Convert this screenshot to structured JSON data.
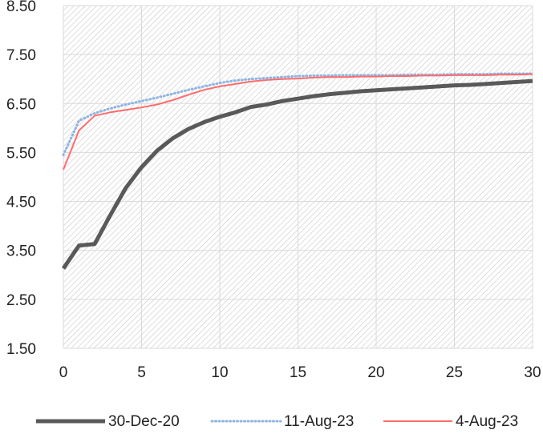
{
  "chart_data": {
    "type": "line",
    "title": "",
    "xlabel": "",
    "ylabel": "",
    "xlim": [
      0,
      30
    ],
    "ylim": [
      1.5,
      8.5
    ],
    "x_ticks": [
      0,
      5,
      10,
      15,
      20,
      25,
      30
    ],
    "x_tick_labels": [
      "0",
      "5",
      "10",
      "15",
      "20",
      "25",
      "30"
    ],
    "y_ticks": [
      1.5,
      2.5,
      3.5,
      4.5,
      5.5,
      6.5,
      7.5,
      8.5
    ],
    "y_tick_labels": [
      "1.50",
      "2.50",
      "3.50",
      "4.50",
      "5.50",
      "6.50",
      "7.50",
      "8.50"
    ],
    "grid": true,
    "background": "hatched",
    "legend_position": "bottom",
    "x": [
      0,
      1,
      2,
      3,
      4,
      5,
      6,
      7,
      8,
      9,
      10,
      11,
      12,
      13,
      14,
      15,
      16,
      17,
      18,
      19,
      20,
      21,
      22,
      23,
      24,
      25,
      26,
      27,
      28,
      29,
      30
    ],
    "series": [
      {
        "name": "30-Dec-20",
        "color": "#595959",
        "style": "solid-thick",
        "values": [
          3.13,
          3.6,
          3.63,
          4.22,
          4.78,
          5.2,
          5.54,
          5.79,
          5.98,
          6.12,
          6.23,
          6.32,
          6.43,
          6.48,
          6.55,
          6.6,
          6.65,
          6.69,
          6.72,
          6.75,
          6.77,
          6.79,
          6.81,
          6.83,
          6.85,
          6.87,
          6.88,
          6.9,
          6.92,
          6.94,
          6.96
        ]
      },
      {
        "name": "11-Aug-23",
        "color": "#8db4e2",
        "style": "dotted",
        "values": [
          5.45,
          6.15,
          6.3,
          6.4,
          6.48,
          6.55,
          6.62,
          6.7,
          6.78,
          6.85,
          6.92,
          6.97,
          7.0,
          7.02,
          7.04,
          7.06,
          7.07,
          7.07,
          7.08,
          7.08,
          7.08,
          7.08,
          7.09,
          7.09,
          7.09,
          7.1,
          7.1,
          7.1,
          7.11,
          7.11,
          7.11
        ]
      },
      {
        "name": "4-Aug-23",
        "color": "#ff6b6b",
        "style": "solid-thin",
        "values": [
          5.15,
          5.95,
          6.25,
          6.32,
          6.37,
          6.42,
          6.48,
          6.57,
          6.68,
          6.78,
          6.85,
          6.9,
          6.95,
          6.98,
          7.0,
          7.01,
          7.03,
          7.04,
          7.04,
          7.05,
          7.05,
          7.06,
          7.06,
          7.07,
          7.07,
          7.08,
          7.08,
          7.08,
          7.09,
          7.09,
          7.1
        ]
      }
    ]
  }
}
